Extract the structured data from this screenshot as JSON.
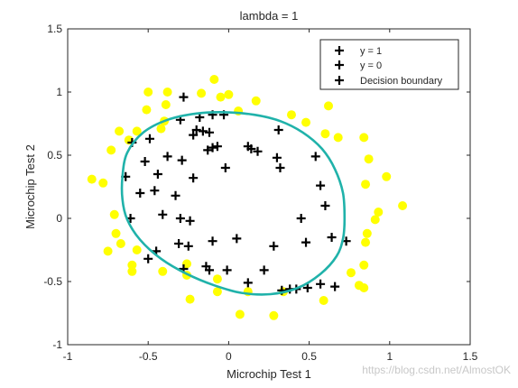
{
  "watermark": "https://blog.csdn.net/AlmostOK",
  "chart_data": {
    "type": "scatter",
    "title": "lambda = 1",
    "xlabel": "Microchip Test 1",
    "ylabel": "Microchip Test 2",
    "xlim": [
      -1,
      1.5
    ],
    "ylim": [
      -1,
      1.5
    ],
    "xticks": [
      -1,
      -0.5,
      0,
      0.5,
      1,
      1.5
    ],
    "yticks": [
      -1,
      -0.5,
      0,
      0.5,
      1,
      1.5
    ],
    "xtick_labels": [
      "-1",
      "-0.5",
      "0",
      "0.5",
      "1",
      "1.5"
    ],
    "ytick_labels": [
      "-1",
      "-0.5",
      "0",
      "0.5",
      "1",
      "1.5"
    ],
    "grid": false,
    "legend": {
      "placement": "top-right",
      "entries": [
        "y = 1",
        "y = 0",
        "Decision boundary"
      ]
    },
    "colors": {
      "positive": "#000000",
      "negative": "#ffff00",
      "boundary": "#20b2aa"
    },
    "series": [
      {
        "name": "y = 1",
        "marker": "plus",
        "points": [
          [
            -0.28,
            0.96
          ],
          [
            -0.1,
            0.82
          ],
          [
            -0.03,
            0.82
          ],
          [
            -0.3,
            0.78
          ],
          [
            -0.18,
            0.8
          ],
          [
            -0.6,
            0.6
          ],
          [
            -0.49,
            0.63
          ],
          [
            -0.2,
            0.7
          ],
          [
            -0.22,
            0.66
          ],
          [
            -0.16,
            0.69
          ],
          [
            -0.12,
            0.68
          ],
          [
            -0.1,
            0.56
          ],
          [
            -0.13,
            0.54
          ],
          [
            0.12,
            0.57
          ],
          [
            0.14,
            0.55
          ],
          [
            0.18,
            0.53
          ],
          [
            0.31,
            0.7
          ],
          [
            0.3,
            0.48
          ],
          [
            0.54,
            0.49
          ],
          [
            0.32,
            0.4
          ],
          [
            -0.38,
            0.49
          ],
          [
            -0.29,
            0.46
          ],
          [
            -0.52,
            0.45
          ],
          [
            -0.07,
            0.57
          ],
          [
            -0.02,
            0.4
          ],
          [
            -0.64,
            0.33
          ],
          [
            -0.44,
            0.35
          ],
          [
            -0.22,
            0.32
          ],
          [
            -0.55,
            0.2
          ],
          [
            -0.46,
            0.22
          ],
          [
            -0.33,
            0.18
          ],
          [
            0.57,
            0.26
          ],
          [
            0.6,
            0.1
          ],
          [
            -0.61,
            0.0
          ],
          [
            -0.41,
            0.03
          ],
          [
            -0.3,
            0.0
          ],
          [
            -0.24,
            -0.02
          ],
          [
            0.45,
            0.0
          ],
          [
            0.64,
            -0.15
          ],
          [
            0.73,
            -0.18
          ],
          [
            -0.45,
            -0.26
          ],
          [
            -0.31,
            -0.2
          ],
          [
            -0.25,
            -0.22
          ],
          [
            -0.1,
            -0.18
          ],
          [
            0.05,
            -0.16
          ],
          [
            0.28,
            -0.22
          ],
          [
            0.48,
            -0.19
          ],
          [
            -0.5,
            -0.32
          ],
          [
            -0.14,
            -0.38
          ],
          [
            -0.12,
            -0.41
          ],
          [
            -0.01,
            -0.41
          ],
          [
            0.22,
            -0.41
          ],
          [
            0.12,
            -0.51
          ],
          [
            0.42,
            -0.56
          ],
          [
            0.49,
            -0.55
          ],
          [
            0.57,
            -0.52
          ],
          [
            0.66,
            -0.54
          ],
          [
            -0.28,
            -0.4
          ],
          [
            0.33,
            -0.57
          ],
          [
            0.38,
            -0.56
          ]
        ]
      },
      {
        "name": "y = 0",
        "marker": "circle",
        "points": [
          [
            -0.09,
            1.1
          ],
          [
            -0.05,
            0.96
          ],
          [
            -0.5,
            1.0
          ],
          [
            -0.38,
            1.0
          ],
          [
            -0.17,
            0.99
          ],
          [
            0.0,
            0.98
          ],
          [
            0.17,
            0.93
          ],
          [
            0.06,
            0.85
          ],
          [
            -0.39,
            0.9
          ],
          [
            -0.51,
            0.86
          ],
          [
            -0.4,
            0.77
          ],
          [
            0.39,
            0.82
          ],
          [
            -0.68,
            0.69
          ],
          [
            -0.57,
            0.69
          ],
          [
            -0.42,
            0.71
          ],
          [
            0.48,
            0.76
          ],
          [
            0.6,
            0.67
          ],
          [
            0.62,
            0.89
          ],
          [
            0.68,
            0.64
          ],
          [
            -0.62,
            0.62
          ],
          [
            -0.73,
            0.54
          ],
          [
            0.84,
            0.64
          ],
          [
            0.87,
            0.47
          ],
          [
            -0.85,
            0.31
          ],
          [
            -0.78,
            0.28
          ],
          [
            0.98,
            0.33
          ],
          [
            0.85,
            0.27
          ],
          [
            -0.71,
            0.03
          ],
          [
            1.08,
            0.1
          ],
          [
            0.93,
            0.05
          ],
          [
            0.91,
            -0.01
          ],
          [
            -0.7,
            -0.12
          ],
          [
            -0.67,
            -0.2
          ],
          [
            0.86,
            -0.12
          ],
          [
            0.85,
            -0.19
          ],
          [
            -0.75,
            -0.26
          ],
          [
            -0.41,
            -0.42
          ],
          [
            -0.6,
            -0.42
          ],
          [
            0.84,
            -0.37
          ],
          [
            0.76,
            -0.43
          ],
          [
            0.81,
            -0.53
          ],
          [
            0.84,
            -0.55
          ],
          [
            -0.26,
            -0.45
          ],
          [
            -0.26,
            -0.36
          ],
          [
            -0.07,
            -0.48
          ],
          [
            0.34,
            -0.58
          ],
          [
            0.59,
            -0.65
          ],
          [
            0.12,
            -0.58
          ],
          [
            -0.07,
            -0.58
          ],
          [
            -0.24,
            -0.64
          ],
          [
            0.07,
            -0.76
          ],
          [
            0.28,
            -0.77
          ],
          [
            -0.57,
            -0.25
          ],
          [
            -0.6,
            -0.37
          ]
        ]
      }
    ],
    "boundary_points": [
      [
        -0.02,
        0.84
      ],
      [
        0.16,
        0.82
      ],
      [
        0.32,
        0.77
      ],
      [
        0.46,
        0.68
      ],
      [
        0.58,
        0.55
      ],
      [
        0.66,
        0.39
      ],
      [
        0.71,
        0.2
      ],
      [
        0.72,
        0.0
      ],
      [
        0.71,
        -0.16
      ],
      [
        0.67,
        -0.3
      ],
      [
        0.57,
        -0.44
      ],
      [
        0.43,
        -0.55
      ],
      [
        0.26,
        -0.6
      ],
      [
        0.08,
        -0.59
      ],
      [
        -0.09,
        -0.53
      ],
      [
        -0.26,
        -0.44
      ],
      [
        -0.42,
        -0.32
      ],
      [
        -0.55,
        -0.17
      ],
      [
        -0.63,
        -0.01
      ],
      [
        -0.66,
        0.15
      ],
      [
        -0.66,
        0.33
      ],
      [
        -0.63,
        0.52
      ],
      [
        -0.53,
        0.68
      ],
      [
        -0.38,
        0.78
      ],
      [
        -0.2,
        0.83
      ]
    ]
  }
}
